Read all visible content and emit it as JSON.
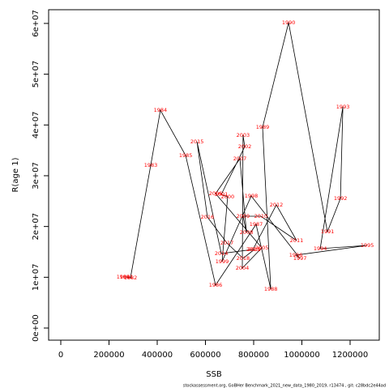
{
  "chart_data": {
    "type": "connected-scatter",
    "xlabel": "SSB",
    "ylabel": "R(age 1)",
    "footer": "stockassessment.org, GoBHer  Benchmark_2021_new_data_1980_2019, r13474 , git: c28bdc2e44ad",
    "line_color": "#000000",
    "label_color": "#ff0000",
    "labels": [
      "1980",
      "1981",
      "1982",
      "1983",
      "1984",
      "1985",
      "1986",
      "1987",
      "1988",
      "1989",
      "1990",
      "1991",
      "1992",
      "1993",
      "1994",
      "1995",
      "1996",
      "1997",
      "1998",
      "1999",
      "2000",
      "2001",
      "2002",
      "2003",
      "2004",
      "2005",
      "2006",
      "2007",
      "2008",
      "2009",
      "2010",
      "2011",
      "2012",
      "2013",
      "2014",
      "2015",
      "2016",
      "2017",
      "2018",
      "2019"
    ],
    "x": [
      259000,
      272000,
      289000,
      373000,
      413000,
      518000,
      642000,
      810000,
      871000,
      837000,
      945000,
      1106000,
      1160000,
      1170000,
      1076000,
      1271000,
      975000,
      992000,
      790000,
      669000,
      692000,
      666000,
      763000,
      756000,
      753000,
      834000,
      642000,
      743000,
      770000,
      756000,
      830000,
      978000,
      894000,
      797000,
      666000,
      565000,
      608000,
      689000,
      756000,
      803000
    ],
    "values": [
      10050000,
      10050000,
      9890000,
      32070000,
      42920000,
      33990000,
      8460000,
      20420000,
      7660000,
      39570000,
      60160000,
      18990000,
      25530000,
      43560000,
      15640000,
      16280000,
      14360000,
      13720000,
      26010000,
      13080000,
      25850000,
      26330000,
      35740000,
      37980000,
      11810000,
      15800000,
      26490000,
      33350000,
      18830000,
      22020000,
      22020000,
      17230000,
      24250000,
      15480000,
      14680000,
      36700000,
      21860000,
      16750000,
      13720000,
      15480000
    ],
    "xlim": [
      -50420,
      1321000
    ],
    "ylim": [
      -2390000,
      62700000
    ],
    "xticks": [
      0,
      200000,
      400000,
      600000,
      800000,
      1000000,
      1200000
    ],
    "yticks": [
      {
        "value": 0,
        "label": "0e+00"
      },
      {
        "value": 10000000,
        "label": "1e+07"
      },
      {
        "value": 20000000,
        "label": "2e+07"
      },
      {
        "value": 30000000,
        "label": "3e+07"
      },
      {
        "value": 40000000,
        "label": "4e+07"
      },
      {
        "value": 50000000,
        "label": "5e+07"
      },
      {
        "value": 60000000,
        "label": "6e+07"
      }
    ]
  }
}
